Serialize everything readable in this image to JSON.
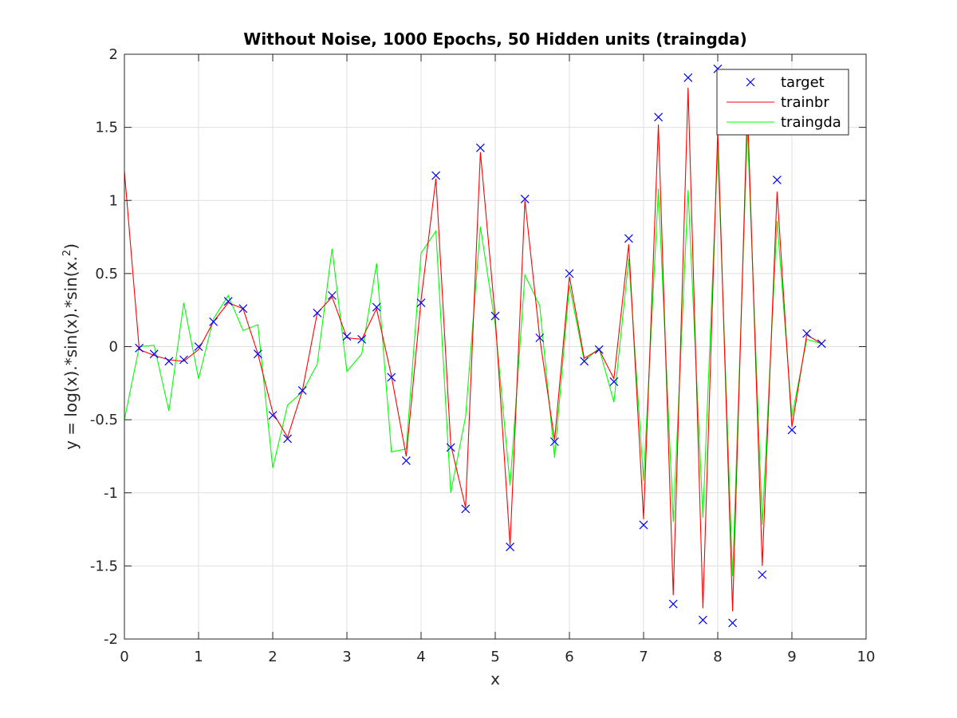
{
  "chart_data": {
    "type": "line",
    "title": "Without Noise, 1000 Epochs, 50 Hidden units (traingda)",
    "xlabel": "x",
    "ylabel": {
      "main": "y = log(x).*sin(x).*sin(x.",
      "superscript": "2",
      "close": ")"
    },
    "xlim": [
      0,
      10
    ],
    "ylim": [
      -2,
      2
    ],
    "xticks": [
      0,
      1,
      2,
      3,
      4,
      5,
      6,
      7,
      8,
      9,
      10
    ],
    "yticks": [
      -2,
      -1.5,
      -1,
      -0.5,
      0,
      0.5,
      1,
      1.5,
      2
    ],
    "xtick_labels": [
      "0",
      "1",
      "2",
      "3",
      "4",
      "5",
      "6",
      "7",
      "8",
      "9",
      "10"
    ],
    "ytick_labels": [
      "-2",
      "-1.5",
      "-1",
      "-0.5",
      "0",
      "0.5",
      "1",
      "1.5",
      "2"
    ],
    "grid": true,
    "legend_position": "top-right",
    "series": [
      {
        "name": "target",
        "style": "marker-x",
        "color": "#0000ff",
        "x": [
          0.2,
          0.4,
          0.6,
          0.8,
          1.0,
          1.2,
          1.4,
          1.6,
          1.8,
          2.0,
          2.2,
          2.4,
          2.6,
          2.8,
          3.0,
          3.2,
          3.4,
          3.6,
          3.8,
          4.0,
          4.2,
          4.4,
          4.6,
          4.8,
          5.0,
          5.2,
          5.4,
          5.6,
          5.8,
          6.0,
          6.2,
          6.4,
          6.6,
          6.8,
          7.0,
          7.2,
          7.4,
          7.6,
          7.8,
          8.0,
          8.2,
          8.4,
          8.6,
          8.8,
          9.0,
          9.2,
          9.4
        ],
        "y": [
          -0.01,
          -0.05,
          -0.1,
          -0.09,
          0.0,
          0.17,
          0.31,
          0.26,
          -0.05,
          -0.47,
          -0.63,
          -0.3,
          0.23,
          0.35,
          0.07,
          0.05,
          0.27,
          -0.21,
          -0.78,
          0.3,
          1.17,
          -0.69,
          -1.11,
          1.36,
          0.21,
          -1.37,
          1.01,
          0.06,
          -0.65,
          0.5,
          -0.1,
          -0.02,
          -0.24,
          0.74,
          -1.22,
          1.57,
          -1.76,
          1.84,
          -1.87,
          1.9,
          -1.89,
          1.65,
          -1.56,
          1.14,
          -0.57,
          0.09,
          0.02
        ]
      },
      {
        "name": "trainbr",
        "style": "line",
        "color": "#ff0000",
        "x": [
          0.0,
          0.2,
          0.4,
          0.6,
          0.8,
          1.0,
          1.2,
          1.4,
          1.6,
          1.8,
          2.0,
          2.2,
          2.4,
          2.6,
          2.8,
          3.0,
          3.2,
          3.4,
          3.6,
          3.8,
          4.0,
          4.2,
          4.4,
          4.6,
          4.8,
          5.0,
          5.2,
          5.4,
          5.6,
          5.8,
          6.0,
          6.2,
          6.4,
          6.6,
          6.8,
          7.0,
          7.2,
          7.4,
          7.6,
          7.8,
          8.0,
          8.2,
          8.4,
          8.6,
          8.8,
          9.0,
          9.2,
          9.4
        ],
        "y": [
          1.2,
          -0.02,
          -0.06,
          -0.09,
          -0.1,
          -0.02,
          0.17,
          0.3,
          0.26,
          -0.05,
          -0.45,
          -0.62,
          -0.3,
          0.23,
          0.34,
          0.06,
          0.05,
          0.26,
          -0.2,
          -0.75,
          0.32,
          1.15,
          -0.67,
          -1.1,
          1.33,
          0.2,
          -1.36,
          1.0,
          0.06,
          -0.64,
          0.48,
          -0.08,
          -0.02,
          -0.22,
          0.7,
          -1.18,
          1.52,
          -1.7,
          1.77,
          -1.79,
          1.48,
          -1.81,
          1.65,
          -1.5,
          1.06,
          -0.55,
          0.08,
          0.02
        ]
      },
      {
        "name": "traingda",
        "style": "line",
        "color": "#00ff00",
        "x": [
          0.0,
          0.2,
          0.4,
          0.6,
          0.8,
          1.0,
          1.2,
          1.4,
          1.6,
          1.8,
          2.0,
          2.2,
          2.4,
          2.6,
          2.8,
          3.0,
          3.2,
          3.4,
          3.6,
          3.8,
          4.0,
          4.2,
          4.4,
          4.6,
          4.8,
          5.0,
          5.2,
          5.4,
          5.6,
          5.8,
          6.0,
          6.2,
          6.4,
          6.6,
          6.8,
          7.0,
          7.2,
          7.4,
          7.6,
          7.8,
          8.0,
          8.2,
          8.4,
          8.6,
          8.8,
          9.0,
          9.2,
          9.4
        ],
        "y": [
          -0.5,
          0.0,
          0.01,
          -0.44,
          0.3,
          -0.22,
          0.19,
          0.35,
          0.11,
          0.15,
          -0.83,
          -0.4,
          -0.31,
          -0.12,
          0.67,
          -0.17,
          -0.05,
          0.57,
          -0.72,
          -0.7,
          0.64,
          0.79,
          -1.0,
          -0.48,
          0.82,
          0.15,
          -0.95,
          0.49,
          0.28,
          -0.76,
          0.42,
          -0.1,
          -0.01,
          -0.38,
          0.6,
          -0.92,
          1.08,
          -1.2,
          1.07,
          -1.17,
          1.36,
          -1.57,
          1.5,
          -1.22,
          0.86,
          -0.48,
          0.05,
          0.02
        ]
      }
    ]
  }
}
